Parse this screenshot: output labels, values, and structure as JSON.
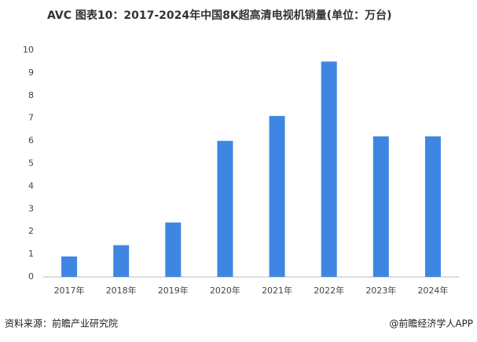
{
  "chart_data": {
    "type": "bar",
    "title": "AVC 图表10：2017-2024年中国8K超高清电视机销量(单位：万台)",
    "categories": [
      "2017年",
      "2018年",
      "2019年",
      "2020年",
      "2021年",
      "2022年",
      "2023年",
      "2024年"
    ],
    "values": [
      0.9,
      1.4,
      2.4,
      6.0,
      7.1,
      9.5,
      6.2,
      6.2
    ],
    "color": "#3f86e2",
    "ylim": [
      0,
      10
    ],
    "yticks": [
      0,
      1,
      2,
      3,
      4,
      5,
      6,
      7,
      8,
      9,
      10
    ],
    "grid": false,
    "source": "资料来源：前瞻产业研究院",
    "credit": "@前瞻经济学人APP"
  }
}
